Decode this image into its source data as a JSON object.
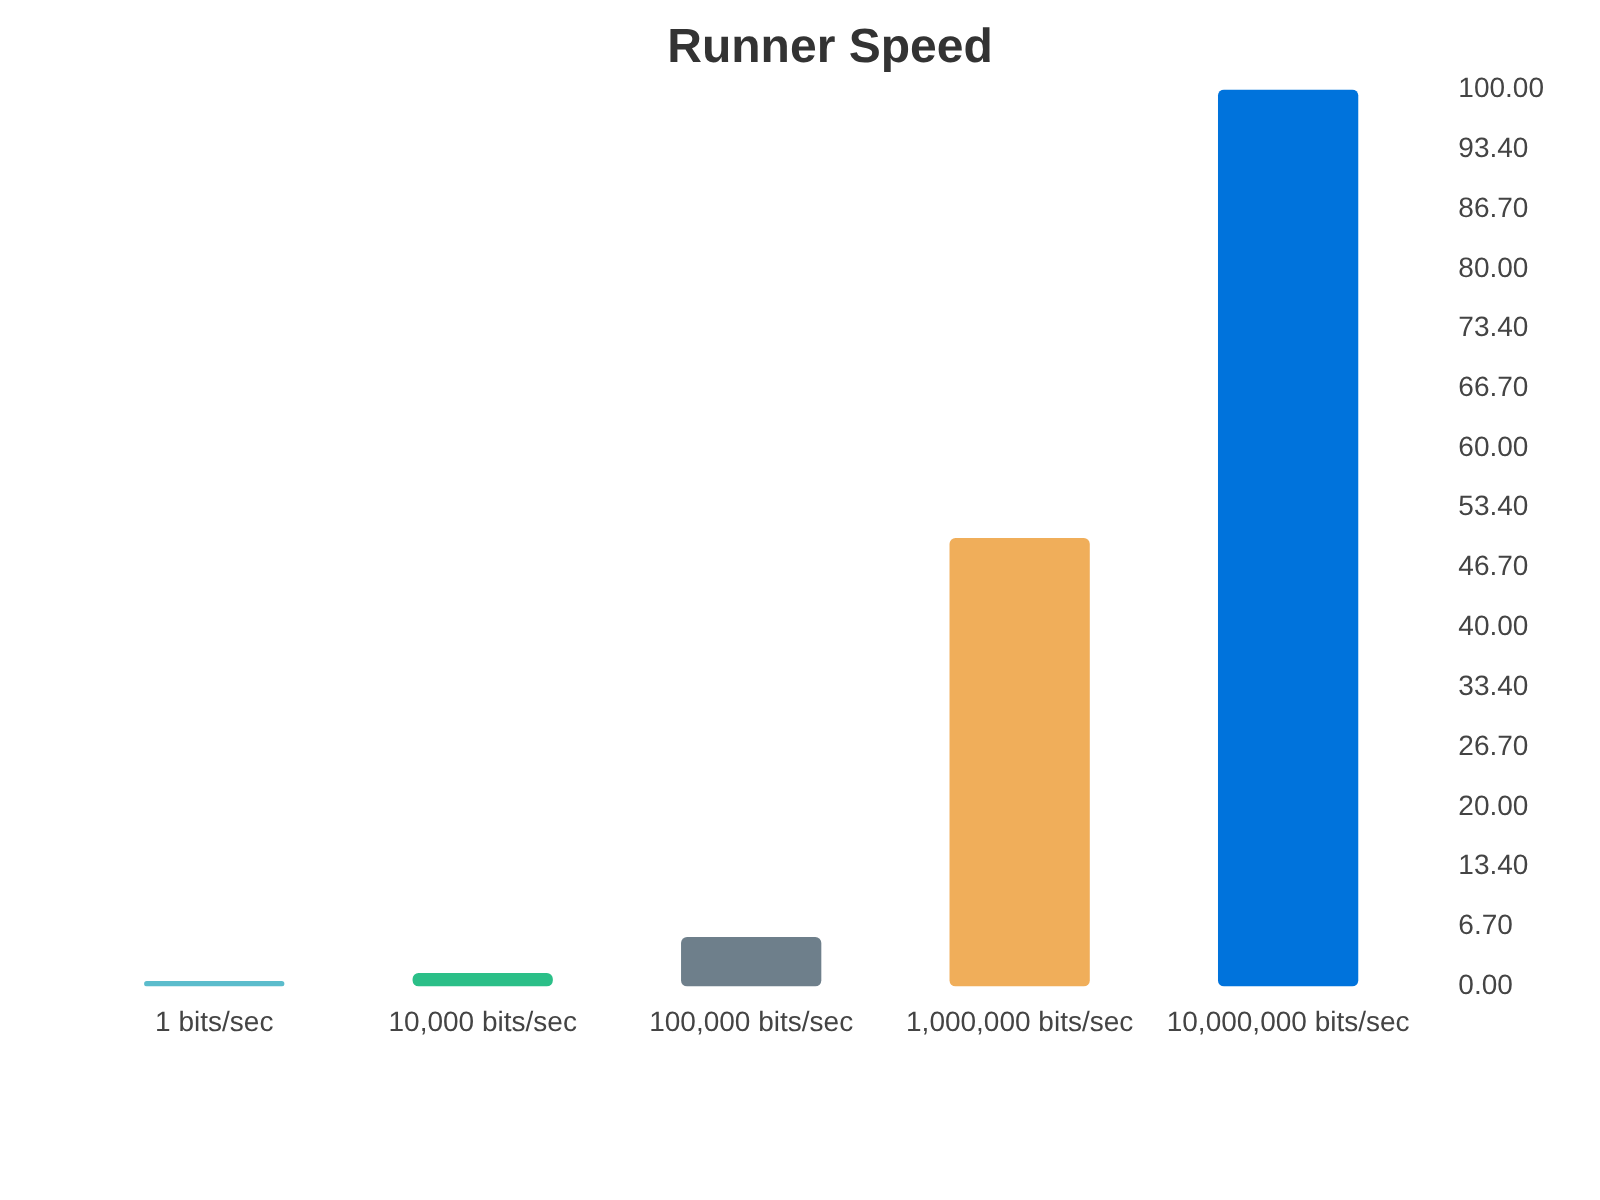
{
  "chart_data": {
    "type": "bar",
    "title": "Runner Speed",
    "categories": [
      "1 bits/sec",
      "10,000 bits/sec",
      "100,000 bits/sec",
      "1,000,000 bits/sec",
      "10,000,000 bits/sec"
    ],
    "values": [
      0.6,
      1.5,
      5.5,
      50,
      100
    ],
    "colors": [
      "#5bbccc",
      "#2bbf88",
      "#6e7f8b",
      "#f0ae5a",
      "#0073dc"
    ],
    "ylim": [
      0,
      100
    ],
    "yticks": [
      {
        "value": 0,
        "label": "0.00"
      },
      {
        "value": 6.7,
        "label": "6.70"
      },
      {
        "value": 13.4,
        "label": "13.40"
      },
      {
        "value": 20,
        "label": "20.00"
      },
      {
        "value": 26.7,
        "label": "26.70"
      },
      {
        "value": 33.4,
        "label": "33.40"
      },
      {
        "value": 40,
        "label": "40.00"
      },
      {
        "value": 46.7,
        "label": "46.70"
      },
      {
        "value": 53.4,
        "label": "53.40"
      },
      {
        "value": 60,
        "label": "60.00"
      },
      {
        "value": 66.7,
        "label": "66.70"
      },
      {
        "value": 73.4,
        "label": "73.40"
      },
      {
        "value": 80,
        "label": "80.00"
      },
      {
        "value": 86.7,
        "label": "86.70"
      },
      {
        "value": 93.4,
        "label": "93.40"
      },
      {
        "value": 100,
        "label": "100.00"
      }
    ],
    "grid": false,
    "legend": false
  }
}
